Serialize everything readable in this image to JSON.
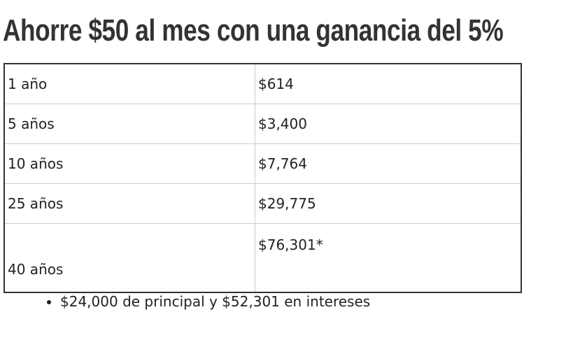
{
  "header": {
    "title": "Ahorre $50 al mes con una ganancia del 5%"
  },
  "table": {
    "rows": [
      [
        "1 año",
        "$614"
      ],
      [
        "5 años",
        "$3,400"
      ],
      [
        "10 años",
        "$7,764"
      ],
      [
        "25 años",
        "$29,775"
      ],
      [
        "40 años",
        "$76,301*"
      ]
    ]
  },
  "notes": [
    "$24,000 de principal y $52,301 en intereses"
  ]
}
